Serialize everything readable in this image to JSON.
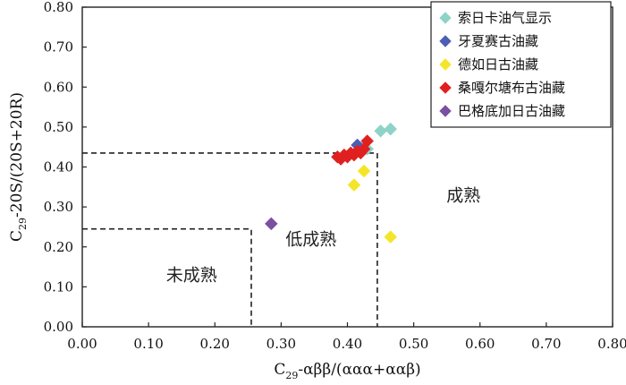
{
  "chart_data": {
    "type": "scatter",
    "title": "",
    "xlabel": {
      "main": "C",
      "sub": "29",
      "rest": "-αββ/(ααα+ααβ)"
    },
    "ylabel": {
      "main": "C",
      "sub": "29",
      "rest": "-20S/(20S+20R)"
    },
    "xlim": [
      0,
      0.8
    ],
    "ylim": [
      0,
      0.8
    ],
    "xticks": [
      "0.00",
      "0.10",
      "0.20",
      "0.30",
      "0.40",
      "0.50",
      "0.60",
      "0.70",
      "0.80"
    ],
    "yticks": [
      "0.00",
      "0.10",
      "0.20",
      "0.30",
      "0.40",
      "0.50",
      "0.60",
      "0.70",
      "0.80"
    ],
    "grid": false,
    "legend_position": "top-right",
    "zones": {
      "labels": [
        {
          "text": "未成熟",
          "x": 0.165,
          "y": 0.115
        },
        {
          "text": "低成熟",
          "x": 0.345,
          "y": 0.205
        },
        {
          "text": "成熟",
          "x": 0.575,
          "y": 0.315
        }
      ],
      "boundaries": [
        {
          "points": [
            [
              0.0,
              0.245
            ],
            [
              0.255,
              0.245
            ],
            [
              0.255,
              0.0
            ]
          ]
        },
        {
          "points": [
            [
              0.0,
              0.435
            ],
            [
              0.445,
              0.435
            ],
            [
              0.445,
              0.0
            ]
          ]
        }
      ]
    },
    "series": [
      {
        "name": "索日卡油气显示",
        "color": "#8fd3c8",
        "points": [
          [
            0.45,
            0.49
          ],
          [
            0.465,
            0.495
          ],
          [
            0.42,
            0.445
          ],
          [
            0.425,
            0.45
          ],
          [
            0.43,
            0.445
          ]
        ]
      },
      {
        "name": "牙夏赛古油藏",
        "color": "#4b5fb5",
        "points": [
          [
            0.415,
            0.455
          ],
          [
            0.42,
            0.44
          ]
        ]
      },
      {
        "name": "德如日古油藏",
        "color": "#f5e52a",
        "points": [
          [
            0.425,
            0.39
          ],
          [
            0.41,
            0.355
          ],
          [
            0.465,
            0.225
          ]
        ]
      },
      {
        "name": "桑嘎尔塘布古油藏",
        "color": "#e02020",
        "points": [
          [
            0.385,
            0.425
          ],
          [
            0.39,
            0.42
          ],
          [
            0.395,
            0.43
          ],
          [
            0.4,
            0.425
          ],
          [
            0.405,
            0.435
          ],
          [
            0.415,
            0.44
          ],
          [
            0.42,
            0.435
          ],
          [
            0.425,
            0.445
          ],
          [
            0.43,
            0.465
          ],
          [
            0.41,
            0.43
          ]
        ]
      },
      {
        "name": "巴格底加日古油藏",
        "color": "#7b50a0",
        "points": [
          [
            0.285,
            0.258
          ]
        ]
      }
    ]
  }
}
